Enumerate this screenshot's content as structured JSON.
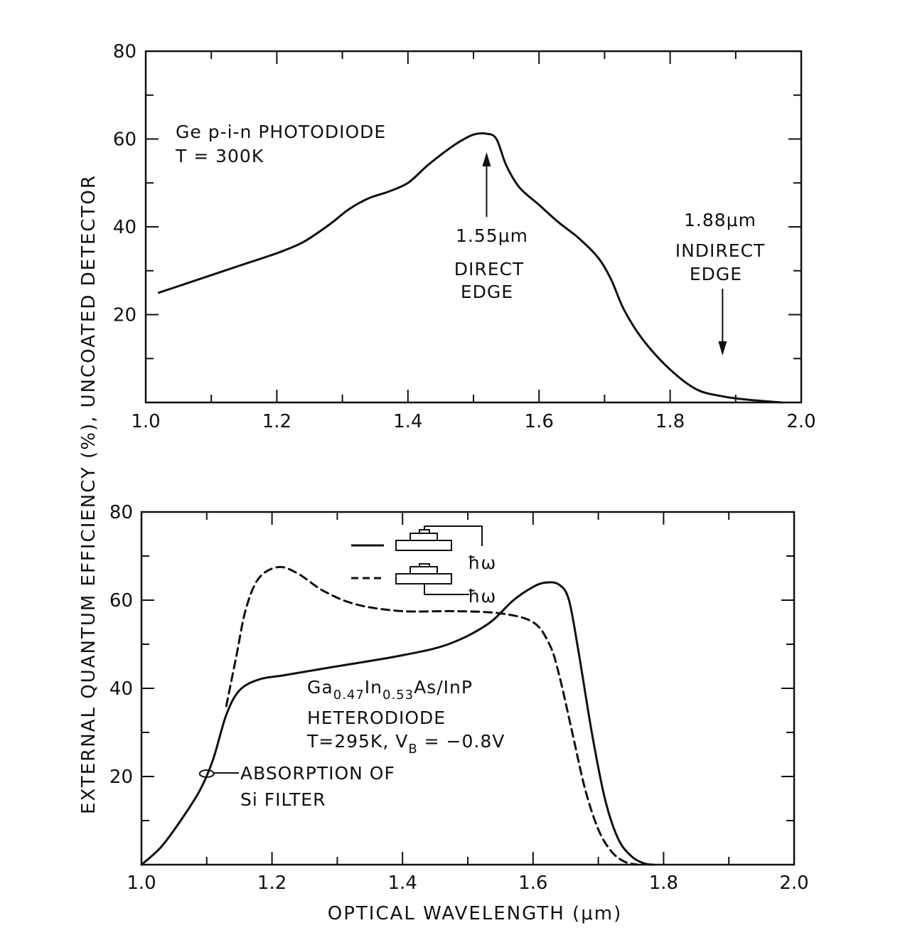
{
  "chart_data": [
    {
      "type": "line",
      "xlabel": "",
      "ylabel": "EXTERNAL QUANTUM EFFICIENCY (%), UNCOATED DETECTOR",
      "xlim": [
        1.0,
        2.0
      ],
      "ylim": [
        0,
        80
      ],
      "xticks": [
        "1.0",
        "1.2",
        "1.4",
        "1.6",
        "1.8",
        "2.0"
      ],
      "yticks": [
        "20",
        "40",
        "60",
        "80"
      ],
      "title_lines": [
        "Ge p-i-n PHOTODIODE",
        "T = 300K"
      ],
      "series": [
        {
          "style": "solid",
          "x": [
            1.02,
            1.06,
            1.1,
            1.15,
            1.2,
            1.24,
            1.28,
            1.31,
            1.34,
            1.37,
            1.4,
            1.43,
            1.46,
            1.48,
            1.5,
            1.52,
            1.535,
            1.55,
            1.57,
            1.6,
            1.63,
            1.66,
            1.69,
            1.71,
            1.73,
            1.76,
            1.8,
            1.84,
            1.88,
            1.92,
            1.97
          ],
          "y": [
            25,
            27,
            29,
            31.5,
            34,
            36.5,
            40.5,
            44,
            46.5,
            48,
            50,
            54,
            57.5,
            59.5,
            61,
            61.2,
            60,
            54,
            49,
            45,
            41,
            37.5,
            33,
            28,
            21,
            14,
            7.5,
            3,
            1.4,
            0.6,
            0
          ]
        }
      ],
      "annotations": [
        {
          "lines": [
            "1.55μm",
            "DIRECT",
            "EDGE"
          ],
          "arrow_x": 1.52
        },
        {
          "lines": [
            "1.88μm",
            "INDIRECT",
            "EDGE"
          ],
          "arrow_x": 1.88
        }
      ]
    },
    {
      "type": "line",
      "xlabel": "OPTICAL WAVELENGTH (μm)",
      "ylabel": "EXTERNAL QUANTUM EFFICIENCY (%), UNCOATED DETECTOR",
      "xlim": [
        1.0,
        2.0
      ],
      "ylim": [
        0,
        80
      ],
      "xticks": [
        "1.0",
        "1.2",
        "1.4",
        "1.6",
        "1.8",
        "2.0"
      ],
      "yticks": [
        "20",
        "40",
        "60",
        "80"
      ],
      "label_lines": [
        "Ga0.47In0.53As/InP",
        "HETERODIODE",
        "T=295K, VB = -0.8V"
      ],
      "series": [
        {
          "style": "solid",
          "legend_symbol": "ħω",
          "x": [
            1.0,
            1.03,
            1.06,
            1.09,
            1.11,
            1.13,
            1.15,
            1.18,
            1.22,
            1.3,
            1.4,
            1.47,
            1.53,
            1.57,
            1.6,
            1.62,
            1.64,
            1.655,
            1.67,
            1.69,
            1.71,
            1.73,
            1.75,
            1.77,
            1.785
          ],
          "y": [
            0,
            4,
            10,
            17,
            24,
            34,
            39.5,
            42,
            43,
            45,
            47.5,
            50,
            54.5,
            60,
            63,
            64,
            63.5,
            60,
            48,
            30,
            15,
            6,
            2,
            0.3,
            0
          ]
        },
        {
          "style": "dashed",
          "legend_symbol": "ħω",
          "x": [
            1.13,
            1.145,
            1.16,
            1.18,
            1.21,
            1.24,
            1.28,
            1.33,
            1.4,
            1.48,
            1.55,
            1.6,
            1.625,
            1.64,
            1.66,
            1.68,
            1.7,
            1.72,
            1.74,
            1.76
          ],
          "y": [
            36,
            47,
            58,
            65,
            67.5,
            66,
            62,
            59,
            57.5,
            57.5,
            57,
            55,
            50,
            43,
            30,
            17,
            8,
            3,
            0.7,
            0
          ]
        }
      ],
      "annotations": [
        {
          "lines": [
            "ABSORPTION OF",
            "Si FILTER"
          ],
          "point": [
            1.1,
            20
          ]
        }
      ]
    }
  ]
}
